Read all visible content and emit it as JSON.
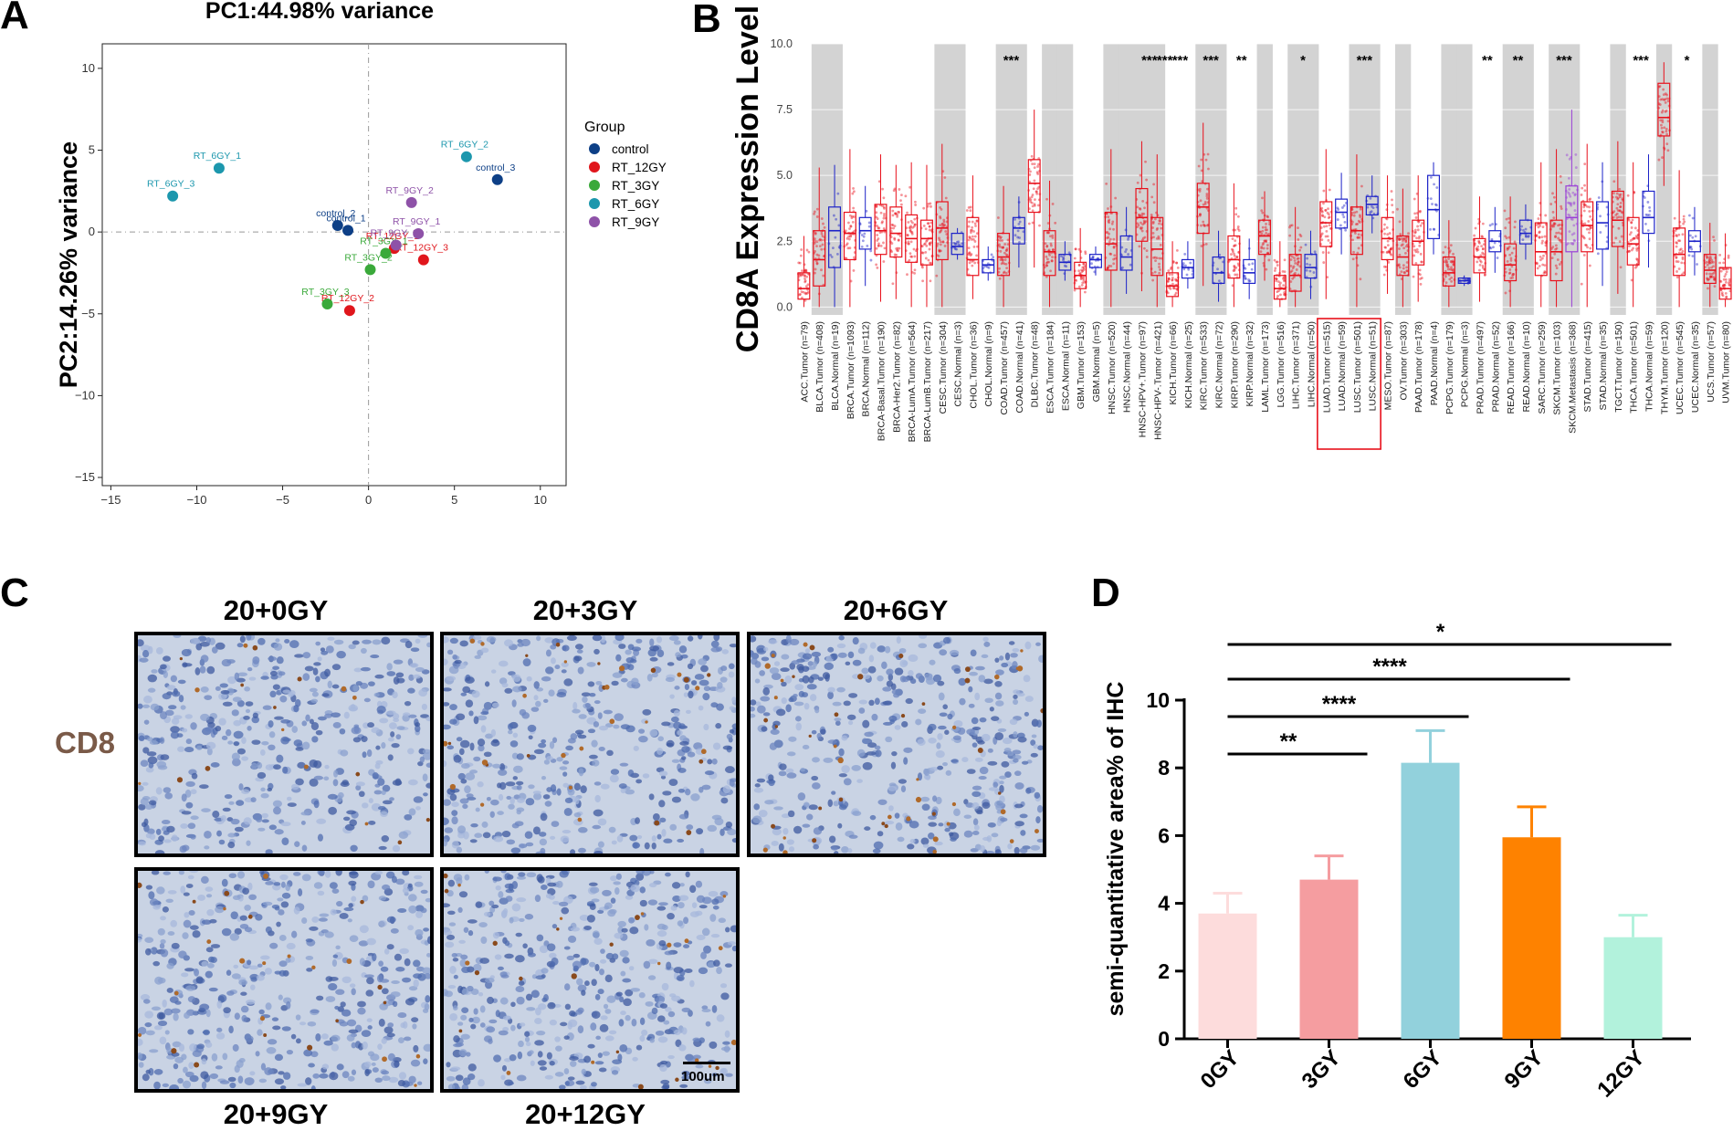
{
  "panels": {
    "a_letter": "A",
    "b_letter": "B",
    "c_letter": "C",
    "d_letter": "D"
  },
  "chart_data": [
    {
      "type": "scatter",
      "panel": "A",
      "title": "PC1:44.98% variance",
      "xlabel": "",
      "ylabel": "PC2:14.26% variance",
      "xlim": [
        -15.5,
        11.5
      ],
      "ylim": [
        -15.5,
        11.5
      ],
      "xticks": [
        -15,
        -10,
        -5,
        0,
        5,
        10
      ],
      "yticks": [
        10,
        5,
        0,
        -5,
        -10,
        -15
      ],
      "legend_title": "Group",
      "legend_position": "right",
      "series": [
        {
          "name": "control",
          "color": "#0d3f86",
          "points": [
            {
              "label": "control_1",
              "x": -1.2,
              "y": 0.1
            },
            {
              "label": "control_2",
              "x": -1.8,
              "y": 0.4
            },
            {
              "label": "control_3",
              "x": 7.5,
              "y": 3.2
            }
          ]
        },
        {
          "name": "RT_12GY",
          "color": "#e0161c",
          "points": [
            {
              "label": "RT_12GY_1",
              "x": 1.5,
              "y": -1.0
            },
            {
              "label": "RT_12GY_2",
              "x": -1.1,
              "y": -4.8
            },
            {
              "label": "RT_12GY_3",
              "x": 3.2,
              "y": -1.7
            }
          ]
        },
        {
          "name": "RT_3GY",
          "color": "#3aa93a",
          "points": [
            {
              "label": "RT_3GY_1",
              "x": 1.0,
              "y": -1.3
            },
            {
              "label": "RT_3GY_2",
              "x": 0.1,
              "y": -2.3
            },
            {
              "label": "RT_3GY_3",
              "x": -2.4,
              "y": -4.4
            }
          ]
        },
        {
          "name": "RT_6GY",
          "color": "#1c97ad",
          "points": [
            {
              "label": "RT_6GY_1",
              "x": -8.7,
              "y": 3.9
            },
            {
              "label": "RT_6GY_2",
              "x": 5.7,
              "y": 4.6
            },
            {
              "label": "RT_6GY_3",
              "x": -11.4,
              "y": 2.2
            }
          ]
        },
        {
          "name": "RT_9GY",
          "color": "#8e52a8",
          "points": [
            {
              "label": "RT_9GY_1",
              "x": 2.9,
              "y": -0.1
            },
            {
              "label": "RT_9GY_2",
              "x": 2.5,
              "y": 1.8
            },
            {
              "label": "RT_9GY_3",
              "x": 1.6,
              "y": -0.8
            }
          ]
        }
      ]
    },
    {
      "type": "box",
      "panel": "B",
      "title": "",
      "ylabel": "CD8A Expression Level",
      "ylim": [
        -0.3,
        10
      ],
      "yticks": [
        "10.0",
        "7.5",
        "5.0",
        "2.5",
        "0.0"
      ],
      "colors": {
        "tumor": "#e8101b",
        "normal": "#1c22c8",
        "metastasis": "#9a3fd6",
        "strip": "#d3d3d3"
      },
      "highlighted_categories": [
        "LUAD.Tumor (n=515)",
        "LUAD.Normal (n=59)",
        "LUSC.Tumor (n=501)",
        "LUSC.Normal (n=51)"
      ],
      "categories": [
        {
          "label": "ACC.Tumor (n=79)",
          "kind": "tumor",
          "median": 0.7,
          "q1": 0.3,
          "q3": 1.3,
          "lo": 0,
          "hi": 2.7,
          "sig": ""
        },
        {
          "label": "BLCA.Tumor (n=408)",
          "kind": "tumor",
          "median": 1.8,
          "q1": 0.8,
          "q3": 2.9,
          "lo": 0,
          "hi": 5.3,
          "sig": ""
        },
        {
          "label": "BLCA.Normal (n=19)",
          "kind": "normal",
          "median": 2.9,
          "q1": 1.5,
          "q3": 3.8,
          "lo": 0,
          "hi": 5.4,
          "sig": ""
        },
        {
          "label": "BRCA.Tumor (n=1093)",
          "kind": "tumor",
          "median": 2.8,
          "q1": 1.8,
          "q3": 3.6,
          "lo": 0,
          "hi": 6.0,
          "sig": ""
        },
        {
          "label": "BRCA.Normal (n=112)",
          "kind": "normal",
          "median": 2.9,
          "q1": 2.2,
          "q3": 3.4,
          "lo": 0.8,
          "hi": 4.6,
          "sig": ""
        },
        {
          "label": "BRCA-Basal.Tumor (n=190)",
          "kind": "tumor",
          "median": 2.9,
          "q1": 2.0,
          "q3": 3.9,
          "lo": 0.2,
          "hi": 5.8,
          "sig": ""
        },
        {
          "label": "BRCA-Her2.Tumor (n=82)",
          "kind": "tumor",
          "median": 2.8,
          "q1": 1.9,
          "q3": 3.8,
          "lo": 0.3,
          "hi": 5.4,
          "sig": ""
        },
        {
          "label": "BRCA-LumA.Tumor (n=564)",
          "kind": "tumor",
          "median": 2.6,
          "q1": 1.7,
          "q3": 3.5,
          "lo": 0,
          "hi": 5.5,
          "sig": ""
        },
        {
          "label": "BRCA-LumB.Tumor (n=217)",
          "kind": "tumor",
          "median": 2.6,
          "q1": 1.6,
          "q3": 3.3,
          "lo": 0,
          "hi": 5.4,
          "sig": ""
        },
        {
          "label": "CESC.Tumor (n=304)",
          "kind": "tumor",
          "median": 3.0,
          "q1": 1.8,
          "q3": 4.0,
          "lo": 0,
          "hi": 6.2,
          "sig": ""
        },
        {
          "label": "CESC.Normal (n=3)",
          "kind": "normal",
          "median": 2.3,
          "q1": 2.0,
          "q3": 2.8,
          "lo": 1.8,
          "hi": 3.0,
          "sig": ""
        },
        {
          "label": "CHOL.Tumor (n=36)",
          "kind": "tumor",
          "median": 1.8,
          "q1": 1.2,
          "q3": 3.4,
          "lo": 0.3,
          "hi": 5.0,
          "sig": ""
        },
        {
          "label": "CHOL.Normal (n=9)",
          "kind": "normal",
          "median": 1.6,
          "q1": 1.3,
          "q3": 1.8,
          "lo": 1.0,
          "hi": 2.3,
          "sig": ""
        },
        {
          "label": "COAD.Tumor (n=457)",
          "kind": "tumor",
          "median": 1.9,
          "q1": 1.2,
          "q3": 2.8,
          "lo": 0,
          "hi": 4.6,
          "sig": "***"
        },
        {
          "label": "COAD.Normal (n=41)",
          "kind": "normal",
          "median": 3.0,
          "q1": 2.4,
          "q3": 3.4,
          "lo": 1.5,
          "hi": 4.2,
          "sig": ""
        },
        {
          "label": "DLBC.Tumor (n=48)",
          "kind": "tumor",
          "median": 4.7,
          "q1": 3.6,
          "q3": 5.6,
          "lo": 1.5,
          "hi": 7.5,
          "sig": ""
        },
        {
          "label": "ESCA.Tumor (n=184)",
          "kind": "tumor",
          "median": 2.1,
          "q1": 1.2,
          "q3": 2.9,
          "lo": 0,
          "hi": 4.8,
          "sig": ""
        },
        {
          "label": "ESCA.Normal (n=11)",
          "kind": "normal",
          "median": 1.7,
          "q1": 1.4,
          "q3": 2.0,
          "lo": 1.0,
          "hi": 2.5,
          "sig": ""
        },
        {
          "label": "GBM.Tumor (n=153)",
          "kind": "tumor",
          "median": 1.2,
          "q1": 0.7,
          "q3": 1.7,
          "lo": 0,
          "hi": 3.0,
          "sig": ""
        },
        {
          "label": "GBM.Normal (n=5)",
          "kind": "normal",
          "median": 1.8,
          "q1": 1.5,
          "q3": 2.0,
          "lo": 1.2,
          "hi": 2.3,
          "sig": ""
        },
        {
          "label": "HNSC.Tumor (n=520)",
          "kind": "tumor",
          "median": 2.4,
          "q1": 1.4,
          "q3": 3.6,
          "lo": 0,
          "hi": 6.0,
          "sig": ""
        },
        {
          "label": "HNSC.Normal (n=44)",
          "kind": "normal",
          "median": 1.9,
          "q1": 1.4,
          "q3": 2.7,
          "lo": 0.5,
          "hi": 3.8,
          "sig": ""
        },
        {
          "label": "HNSC-HPV+.Tumor (n=97)",
          "kind": "tumor",
          "median": 3.4,
          "q1": 2.5,
          "q3": 4.5,
          "lo": 0.6,
          "hi": 6.3,
          "sig": "***"
        },
        {
          "label": "HNSC-HPV-.Tumor (n=421)",
          "kind": "tumor",
          "median": 2.2,
          "q1": 1.2,
          "q3": 3.4,
          "lo": 0,
          "hi": 5.8,
          "sig": "***"
        },
        {
          "label": "KICH.Tumor (n=66)",
          "kind": "tumor",
          "median": 0.8,
          "q1": 0.4,
          "q3": 1.3,
          "lo": 0,
          "hi": 2.5,
          "sig": "***"
        },
        {
          "label": "KICH.Normal (n=25)",
          "kind": "normal",
          "median": 1.5,
          "q1": 1.1,
          "q3": 1.8,
          "lo": 0.7,
          "hi": 2.5,
          "sig": ""
        },
        {
          "label": "KIRC.Tumor (n=533)",
          "kind": "tumor",
          "median": 3.8,
          "q1": 2.8,
          "q3": 4.7,
          "lo": 0.8,
          "hi": 7.0,
          "sig": "***"
        },
        {
          "label": "KIRC.Normal (n=72)",
          "kind": "normal",
          "median": 1.3,
          "q1": 0.9,
          "q3": 1.9,
          "lo": 0.2,
          "hi": 2.9,
          "sig": ""
        },
        {
          "label": "KIRP.Tumor (n=290)",
          "kind": "tumor",
          "median": 1.8,
          "q1": 1.1,
          "q3": 2.7,
          "lo": 0,
          "hi": 4.7,
          "sig": "**"
        },
        {
          "label": "KIRP.Normal (n=32)",
          "kind": "normal",
          "median": 1.3,
          "q1": 0.9,
          "q3": 1.8,
          "lo": 0.3,
          "hi": 2.6,
          "sig": ""
        },
        {
          "label": "LAML.Tumor (n=173)",
          "kind": "tumor",
          "median": 2.7,
          "q1": 2.0,
          "q3": 3.3,
          "lo": 1.0,
          "hi": 4.4,
          "sig": ""
        },
        {
          "label": "LGG.Tumor (n=516)",
          "kind": "tumor",
          "median": 0.7,
          "q1": 0.3,
          "q3": 1.2,
          "lo": 0,
          "hi": 2.5,
          "sig": ""
        },
        {
          "label": "LIHC.Tumor (n=371)",
          "kind": "tumor",
          "median": 1.2,
          "q1": 0.6,
          "q3": 2.0,
          "lo": 0,
          "hi": 3.8,
          "sig": "*"
        },
        {
          "label": "LIHC.Normal (n=50)",
          "kind": "normal",
          "median": 1.5,
          "q1": 1.1,
          "q3": 2.0,
          "lo": 0.3,
          "hi": 2.9,
          "sig": ""
        },
        {
          "label": "LUAD.Tumor (n=515)",
          "kind": "tumor",
          "median": 3.2,
          "q1": 2.3,
          "q3": 4.0,
          "lo": 0.3,
          "hi": 6.0,
          "sig": ""
        },
        {
          "label": "LUAD.Normal (n=59)",
          "kind": "normal",
          "median": 3.6,
          "q1": 3.0,
          "q3": 4.1,
          "lo": 2.0,
          "hi": 5.1,
          "sig": ""
        },
        {
          "label": "LUSC.Tumor (n=501)",
          "kind": "tumor",
          "median": 2.9,
          "q1": 2.0,
          "q3": 3.8,
          "lo": 0,
          "hi": 5.8,
          "sig": "***"
        },
        {
          "label": "LUSC.Normal (n=51)",
          "kind": "normal",
          "median": 3.9,
          "q1": 3.5,
          "q3": 4.2,
          "lo": 2.8,
          "hi": 5.0,
          "sig": ""
        },
        {
          "label": "MESO.Tumor (n=87)",
          "kind": "tumor",
          "median": 2.6,
          "q1": 1.8,
          "q3": 3.4,
          "lo": 0.5,
          "hi": 5.0,
          "sig": ""
        },
        {
          "label": "OV.Tumor (n=303)",
          "kind": "tumor",
          "median": 1.9,
          "q1": 1.2,
          "q3": 2.7,
          "lo": 0,
          "hi": 4.5,
          "sig": ""
        },
        {
          "label": "PAAD.Tumor (n=178)",
          "kind": "tumor",
          "median": 2.5,
          "q1": 1.6,
          "q3": 3.3,
          "lo": 0.2,
          "hi": 5.0,
          "sig": ""
        },
        {
          "label": "PAAD.Normal (n=4)",
          "kind": "normal",
          "median": 3.7,
          "q1": 2.6,
          "q3": 5.0,
          "lo": 2.0,
          "hi": 5.5,
          "sig": ""
        },
        {
          "label": "PCPG.Tumor (n=179)",
          "kind": "tumor",
          "median": 1.3,
          "q1": 0.8,
          "q3": 1.9,
          "lo": 0,
          "hi": 3.3,
          "sig": ""
        },
        {
          "label": "PCPG.Normal (n=3)",
          "kind": "normal",
          "median": 1.0,
          "q1": 0.9,
          "q3": 1.1,
          "lo": 0.8,
          "hi": 1.2,
          "sig": ""
        },
        {
          "label": "PRAD.Tumor (n=497)",
          "kind": "tumor",
          "median": 1.9,
          "q1": 1.3,
          "q3": 2.6,
          "lo": 0.2,
          "hi": 4.2,
          "sig": "**"
        },
        {
          "label": "PRAD.Normal (n=52)",
          "kind": "normal",
          "median": 2.5,
          "q1": 2.1,
          "q3": 2.9,
          "lo": 1.3,
          "hi": 3.8,
          "sig": ""
        },
        {
          "label": "READ.Tumor (n=166)",
          "kind": "tumor",
          "median": 1.6,
          "q1": 1.0,
          "q3": 2.4,
          "lo": 0,
          "hi": 4.2,
          "sig": "**"
        },
        {
          "label": "READ.Normal (n=10)",
          "kind": "normal",
          "median": 2.8,
          "q1": 2.4,
          "q3": 3.3,
          "lo": 1.8,
          "hi": 3.9,
          "sig": ""
        },
        {
          "label": "SARC.Tumor (n=259)",
          "kind": "tumor",
          "median": 2.1,
          "q1": 1.2,
          "q3": 3.2,
          "lo": 0,
          "hi": 5.5,
          "sig": ""
        },
        {
          "label": "SKCM.Tumor (n=103)",
          "kind": "tumor",
          "median": 2.1,
          "q1": 1.0,
          "q3": 3.3,
          "lo": 0,
          "hi": 6.0,
          "sig": "***"
        },
        {
          "label": "SKCM.Metastasis (n=368)",
          "kind": "metastasis",
          "median": 3.4,
          "q1": 2.1,
          "q3": 4.6,
          "lo": 0,
          "hi": 7.5,
          "sig": ""
        },
        {
          "label": "STAD.Tumor (n=415)",
          "kind": "tumor",
          "median": 3.1,
          "q1": 2.1,
          "q3": 4.0,
          "lo": 0,
          "hi": 6.2,
          "sig": ""
        },
        {
          "label": "STAD.Normal (n=35)",
          "kind": "normal",
          "median": 3.2,
          "q1": 2.2,
          "q3": 4.0,
          "lo": 0.8,
          "hi": 5.5,
          "sig": ""
        },
        {
          "label": "TGCT.Tumor (n=150)",
          "kind": "tumor",
          "median": 3.3,
          "q1": 2.3,
          "q3": 4.4,
          "lo": 0.5,
          "hi": 6.3,
          "sig": ""
        },
        {
          "label": "THCA.Tumor (n=501)",
          "kind": "tumor",
          "median": 2.4,
          "q1": 1.6,
          "q3": 3.4,
          "lo": 0,
          "hi": 5.5,
          "sig": "***"
        },
        {
          "label": "THCA.Normal (n=59)",
          "kind": "normal",
          "median": 3.4,
          "q1": 2.8,
          "q3": 4.4,
          "lo": 1.5,
          "hi": 5.8,
          "sig": ""
        },
        {
          "label": "THYM.Tumor (n=120)",
          "kind": "tumor",
          "median": 7.2,
          "q1": 6.5,
          "q3": 8.5,
          "lo": 4.6,
          "hi": 9.3,
          "sig": ""
        },
        {
          "label": "UCEC.Tumor (n=545)",
          "kind": "tumor",
          "median": 2.0,
          "q1": 1.2,
          "q3": 3.0,
          "lo": 0,
          "hi": 5.2,
          "sig": "*"
        },
        {
          "label": "UCEC.Normal (n=35)",
          "kind": "normal",
          "median": 2.5,
          "q1": 2.1,
          "q3": 2.9,
          "lo": 1.2,
          "hi": 3.8,
          "sig": ""
        },
        {
          "label": "UCS.Tumor (n=57)",
          "kind": "tumor",
          "median": 1.4,
          "q1": 0.9,
          "q3": 2.0,
          "lo": 0,
          "hi": 3.2,
          "sig": ""
        },
        {
          "label": "UVM.Tumor (n=80)",
          "kind": "tumor",
          "median": 0.7,
          "q1": 0.3,
          "q3": 1.5,
          "lo": 0,
          "hi": 2.8,
          "sig": ""
        }
      ]
    },
    {
      "type": "bar",
      "panel": "D",
      "title": "",
      "xlabel": "",
      "ylabel": "semi-quantitative area% of IHC",
      "ylim": [
        0,
        10
      ],
      "yticks": [
        "0",
        "2",
        "4",
        "6",
        "8",
        "10"
      ],
      "categories": [
        "0GY",
        "3GY",
        "6GY",
        "9GY",
        "12GY"
      ],
      "values": [
        3.7,
        4.7,
        8.15,
        5.95,
        3.0
      ],
      "errors": [
        0.6,
        0.7,
        0.95,
        0.9,
        0.65
      ],
      "colors": [
        "#fddcdc",
        "#f59da0",
        "#92d1dc",
        "#fe8200",
        "#b2f2dc"
      ],
      "significance": [
        {
          "from": "0GY",
          "to": "3GY",
          "label": "**"
        },
        {
          "from": "0GY",
          "to": "6GY",
          "label": "****"
        },
        {
          "from": "0GY",
          "to": "9GY",
          "label": "****"
        },
        {
          "from": "0GY",
          "to": "12GY",
          "label": "*"
        }
      ]
    }
  ],
  "ihc": {
    "marker": "CD8",
    "scale_bar": "100um",
    "tiles": [
      {
        "label": "20+0GY"
      },
      {
        "label": "20+3GY"
      },
      {
        "label": "20+6GY"
      },
      {
        "label": "20+9GY"
      },
      {
        "label": "20+12GY"
      }
    ]
  }
}
